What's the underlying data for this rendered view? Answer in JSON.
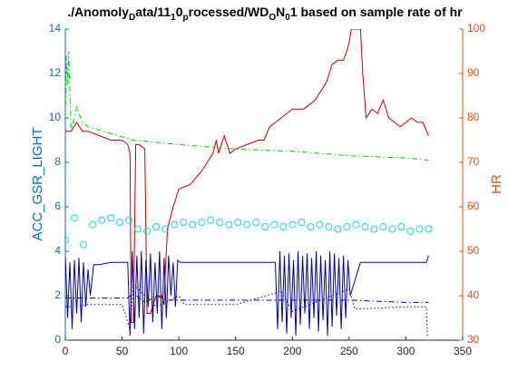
{
  "chart_data": {
    "type": "line",
    "title_parts": [
      {
        "text": "./Anomoly",
        "sub": false
      },
      {
        "text": "D",
        "sub": true
      },
      {
        "text": "ata/11",
        "sub": false
      },
      {
        "text": "1",
        "sub": true
      },
      {
        "text": "0",
        "sub": false
      },
      {
        "text": "p",
        "sub": true
      },
      {
        "text": "rocessed/WD",
        "sub": false
      },
      {
        "text": "O",
        "sub": true
      },
      {
        "text": "N",
        "sub": false
      },
      {
        "text": "0",
        "sub": true
      },
      {
        "text": "1 based on sample rate of hr",
        "sub": false
      }
    ],
    "ylabel": "ACC_GSR_LIGHT",
    "y2label": "HR",
    "xlim": [
      0,
      350
    ],
    "xticks": [
      0,
      50,
      100,
      150,
      200,
      250,
      300,
      350
    ],
    "ylim": [
      0,
      14
    ],
    "yticks": [
      0,
      2,
      4,
      6,
      8,
      10,
      12,
      14
    ],
    "y2lim": [
      30,
      100
    ],
    "y2ticks": [
      30,
      40,
      50,
      60,
      70,
      80,
      90,
      100
    ],
    "ycolor": "#0072bd",
    "y2color": "#d95319",
    "series": [
      {
        "color": "#c00000",
        "style": "-",
        "axis": "y2",
        "x": [
          0,
          5,
          10,
          15,
          20,
          30,
          40,
          50,
          55,
          57,
          58,
          60,
          62,
          65,
          70,
          72,
          75,
          80,
          85,
          87,
          88,
          90,
          95,
          100,
          110,
          120,
          125,
          130,
          133,
          135,
          140,
          145,
          150,
          160,
          170,
          175,
          180,
          185,
          190,
          195,
          200,
          210,
          220,
          225,
          230,
          235,
          240,
          245,
          248,
          250,
          252,
          255,
          258,
          260,
          262,
          265,
          270,
          275,
          280,
          285,
          290,
          295,
          300,
          305,
          310,
          315,
          320
        ],
        "values": [
          77,
          77,
          79,
          77,
          77,
          76,
          75,
          75,
          74,
          72,
          34,
          34,
          74,
          74,
          73,
          36,
          36,
          40,
          40,
          38,
          45,
          55,
          60,
          64,
          65,
          68,
          70,
          72,
          75,
          72,
          76,
          72,
          73,
          74,
          75,
          75,
          78,
          79,
          80,
          81,
          82,
          82,
          84,
          86,
          88,
          92,
          93,
          93,
          95,
          97,
          100,
          100,
          100,
          100,
          90,
          80,
          82,
          81,
          84,
          80,
          79,
          78,
          79,
          80,
          79,
          79,
          76
        ]
      },
      {
        "color": "#00d000",
        "style": "-.",
        "axis": "y",
        "x": [
          0,
          1,
          2,
          3,
          5,
          8,
          10,
          15,
          20,
          40,
          60,
          100,
          150,
          200,
          250,
          300,
          320
        ],
        "values": [
          10,
          12.8,
          11.5,
          13,
          9.5,
          10,
          10.5,
          9.8,
          9.6,
          9.3,
          9,
          8.8,
          8.6,
          8.5,
          8.3,
          8.2,
          8.1
        ]
      },
      {
        "color": "#00e0e0",
        "style": "o",
        "axis": "y",
        "x": [
          0,
          8,
          16,
          24,
          32,
          40,
          48,
          56,
          64,
          72,
          80,
          88,
          96,
          104,
          112,
          120,
          128,
          136,
          144,
          152,
          160,
          168,
          176,
          184,
          192,
          200,
          208,
          216,
          224,
          232,
          240,
          248,
          256,
          264,
          272,
          280,
          288,
          296,
          304,
          312,
          320
        ],
        "values": [
          4.5,
          5.5,
          4.3,
          5.2,
          5.4,
          5.5,
          5.3,
          5.4,
          5,
          4.9,
          5.1,
          5,
          5.2,
          5.3,
          5.2,
          5.3,
          5.4,
          5.3,
          5.2,
          5.3,
          5.2,
          5.3,
          5.1,
          5.2,
          5.1,
          5.2,
          5.3,
          5.1,
          5.2,
          5.1,
          5,
          5.1,
          5.2,
          5.1,
          5,
          5.1,
          5,
          5.1,
          4.9,
          5,
          5
        ]
      },
      {
        "color": "#0000b0",
        "style": "-",
        "axis": "y",
        "x": [
          0,
          2,
          4,
          6,
          8,
          10,
          12,
          14,
          16,
          18,
          20,
          22,
          25,
          30,
          40,
          50,
          55,
          57,
          59,
          61,
          63,
          65,
          67,
          69,
          71,
          73,
          75,
          77,
          79,
          81,
          83,
          85,
          87,
          89,
          91,
          93,
          95,
          97,
          99,
          101,
          110,
          150,
          185,
          187,
          189,
          191,
          193,
          195,
          197,
          199,
          201,
          203,
          205,
          207,
          209,
          211,
          213,
          215,
          217,
          219,
          221,
          223,
          225,
          227,
          229,
          231,
          233,
          235,
          237,
          239,
          241,
          243,
          245,
          247,
          249,
          251,
          260,
          300,
          318,
          320
        ],
        "values": [
          3.8,
          1,
          3.5,
          0.5,
          3.6,
          1.2,
          3.7,
          0.8,
          3.5,
          1.5,
          3.2,
          2,
          3.4,
          3.4,
          3.5,
          3.5,
          3.5,
          0.2,
          4,
          0.5,
          3.8,
          1,
          4,
          0.3,
          3.6,
          1.5,
          3.9,
          0.8,
          3.5,
          1.2,
          4,
          0.5,
          3.7,
          1,
          3.8,
          2,
          3.5,
          1.5,
          3.6,
          3.5,
          3.5,
          3.5,
          3.5,
          0.5,
          4,
          0.8,
          3.8,
          0.3,
          3.9,
          1,
          3.6,
          0.2,
          4,
          0.7,
          3.8,
          1.2,
          3.9,
          0.5,
          3.7,
          1,
          4,
          0.4,
          3.8,
          0.9,
          3.6,
          0.2,
          4,
          0.6,
          3.9,
          1.1,
          3.7,
          0.5,
          3.8,
          1,
          3.6,
          2,
          3.5,
          3.5,
          3.5,
          3.8
        ]
      },
      {
        "color": "#0000b0",
        "style": "-.",
        "axis": "y",
        "x": [
          0,
          20,
          40,
          55,
          60,
          70,
          80,
          90,
          100,
          120,
          150,
          200,
          250,
          300,
          320
        ],
        "values": [
          1.9,
          1.9,
          1.9,
          1.9,
          2.1,
          1.7,
          2,
          1.8,
          1.8,
          1.8,
          1.8,
          1.8,
          1.8,
          1.7,
          1.7
        ]
      },
      {
        "color": "#0000b0",
        "style": ":",
        "axis": "y",
        "x": [
          0,
          20,
          50,
          57,
          60,
          80,
          100,
          105,
          150,
          190,
          200,
          250,
          255,
          300,
          318,
          319
        ],
        "values": [
          1.5,
          1.6,
          1.6,
          0.5,
          2.5,
          1.5,
          2,
          1.6,
          1.6,
          2.2,
          1.3,
          2.3,
          1.4,
          1.5,
          1.5,
          0.1
        ]
      }
    ]
  }
}
